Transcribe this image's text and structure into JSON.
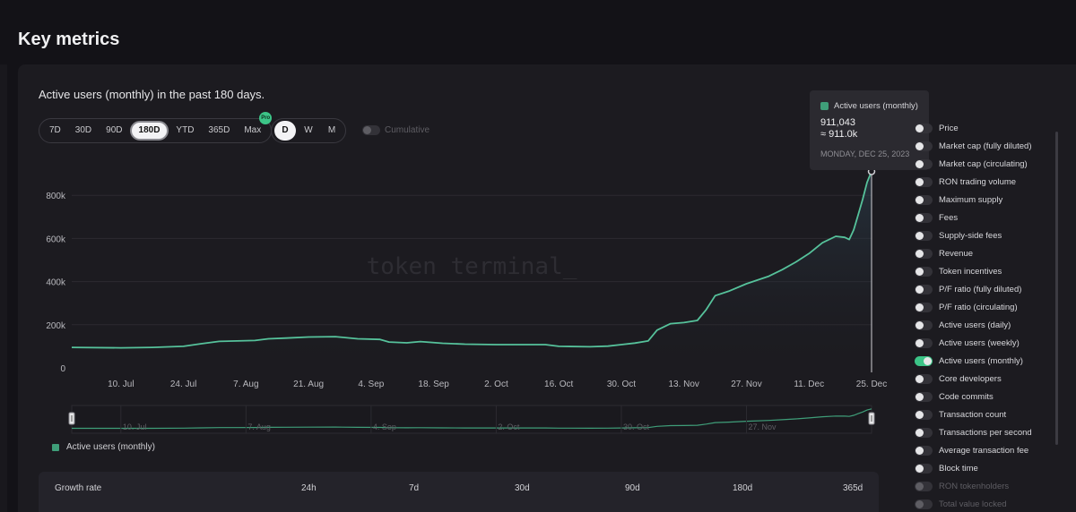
{
  "page": {
    "title": "Key metrics"
  },
  "chart_header": {
    "title": "Active users (monthly) in the past 180 days.",
    "ranges": [
      "7D",
      "30D",
      "90D",
      "180D",
      "YTD",
      "365D",
      "Max"
    ],
    "active_range": "180D",
    "pro_badge": "Pro",
    "granularity": [
      "D",
      "W",
      "M"
    ],
    "active_granularity": "D",
    "cumulative_label": "Cumulative"
  },
  "watermark": "token terminal_",
  "tooltip": {
    "series": "Active users (monthly)",
    "value": "911,043",
    "approx": "≈ 911.0k",
    "date": "MONDAY, DEC 25, 2023"
  },
  "legend": {
    "label": "Active users (monthly)"
  },
  "colors": {
    "accent": "#3cc487",
    "line": "#56c29b",
    "series": "#3f9e79",
    "background": "#1c1b20"
  },
  "chart_data": {
    "type": "area",
    "title": "Active users (monthly) in the past 180 days.",
    "series": [
      {
        "name": "Active users (monthly)"
      }
    ],
    "y_ticks": [
      "0",
      "200k",
      "400k",
      "600k",
      "800k"
    ],
    "ylim": [
      0,
      1000000
    ],
    "x_tick_labels": [
      "10. Jul",
      "24. Jul",
      "7. Aug",
      "21. Aug",
      "4. Sep",
      "18. Sep",
      "2. Oct",
      "16. Oct",
      "30. Oct",
      "13. Nov",
      "27. Nov",
      "11. Dec",
      "25. Dec"
    ],
    "navigator_labels": [
      "10. Jul",
      "7. Aug",
      "4. Sep",
      "2. Oct",
      "30. Oct",
      "27. Nov"
    ],
    "x_start": "2023-06-29",
    "x_end": "2023-12-25",
    "points": [
      [
        "2023-06-29",
        95000
      ],
      [
        "2023-07-10",
        93000
      ],
      [
        "2023-07-17",
        95000
      ],
      [
        "2023-07-24",
        100000
      ],
      [
        "2023-07-28",
        112000
      ],
      [
        "2023-08-01",
        123000
      ],
      [
        "2023-08-05",
        125000
      ],
      [
        "2023-08-09",
        127000
      ],
      [
        "2023-08-12",
        135000
      ],
      [
        "2023-08-16",
        138000
      ],
      [
        "2023-08-21",
        143000
      ],
      [
        "2023-08-27",
        145000
      ],
      [
        "2023-09-01",
        135000
      ],
      [
        "2023-09-06",
        132000
      ],
      [
        "2023-09-08",
        120000
      ],
      [
        "2023-09-12",
        116000
      ],
      [
        "2023-09-15",
        122000
      ],
      [
        "2023-09-20",
        114000
      ],
      [
        "2023-09-25",
        110000
      ],
      [
        "2023-10-02",
        108000
      ],
      [
        "2023-10-13",
        108000
      ],
      [
        "2023-10-16",
        100000
      ],
      [
        "2023-10-23",
        98000
      ],
      [
        "2023-10-27",
        101000
      ],
      [
        "2023-10-30",
        108000
      ],
      [
        "2023-11-02",
        115000
      ],
      [
        "2023-11-05",
        125000
      ],
      [
        "2023-11-07",
        175000
      ],
      [
        "2023-11-10",
        205000
      ],
      [
        "2023-11-13",
        210000
      ],
      [
        "2023-11-16",
        220000
      ],
      [
        "2023-11-18",
        270000
      ],
      [
        "2023-11-20",
        335000
      ],
      [
        "2023-11-23",
        355000
      ],
      [
        "2023-11-27",
        390000
      ],
      [
        "2023-12-02",
        425000
      ],
      [
        "2023-12-05",
        455000
      ],
      [
        "2023-12-08",
        490000
      ],
      [
        "2023-12-11",
        530000
      ],
      [
        "2023-12-14",
        580000
      ],
      [
        "2023-12-17",
        610000
      ],
      [
        "2023-12-19",
        605000
      ],
      [
        "2023-12-20",
        595000
      ],
      [
        "2023-12-21",
        640000
      ],
      [
        "2023-12-22",
        710000
      ],
      [
        "2023-12-23",
        780000
      ],
      [
        "2023-12-24",
        860000
      ],
      [
        "2023-12-25",
        911043
      ]
    ]
  },
  "metrics": [
    {
      "label": "Price",
      "on": false,
      "dim": false
    },
    {
      "label": "Market cap (fully diluted)",
      "on": false,
      "dim": false
    },
    {
      "label": "Market cap (circulating)",
      "on": false,
      "dim": false
    },
    {
      "label": "RON trading volume",
      "on": false,
      "dim": false
    },
    {
      "label": "Maximum supply",
      "on": false,
      "dim": false
    },
    {
      "label": "Fees",
      "on": false,
      "dim": false
    },
    {
      "label": "Supply-side fees",
      "on": false,
      "dim": false
    },
    {
      "label": "Revenue",
      "on": false,
      "dim": false
    },
    {
      "label": "Token incentives",
      "on": false,
      "dim": false
    },
    {
      "label": "P/F ratio (fully diluted)",
      "on": false,
      "dim": false
    },
    {
      "label": "P/F ratio (circulating)",
      "on": false,
      "dim": false
    },
    {
      "label": "Active users (daily)",
      "on": false,
      "dim": false
    },
    {
      "label": "Active users (weekly)",
      "on": false,
      "dim": false
    },
    {
      "label": "Active users (monthly)",
      "on": true,
      "dim": false
    },
    {
      "label": "Core developers",
      "on": false,
      "dim": false
    },
    {
      "label": "Code commits",
      "on": false,
      "dim": false
    },
    {
      "label": "Transaction count",
      "on": false,
      "dim": false
    },
    {
      "label": "Transactions per second",
      "on": false,
      "dim": false
    },
    {
      "label": "Average transaction fee",
      "on": false,
      "dim": false
    },
    {
      "label": "Block time",
      "on": false,
      "dim": false
    },
    {
      "label": "RON tokenholders",
      "on": false,
      "dim": true
    },
    {
      "label": "Total value locked",
      "on": false,
      "dim": true
    }
  ],
  "growth": {
    "title": "Growth rate",
    "columns": [
      "24h",
      "7d",
      "30d",
      "90d",
      "180d",
      "365d"
    ]
  }
}
